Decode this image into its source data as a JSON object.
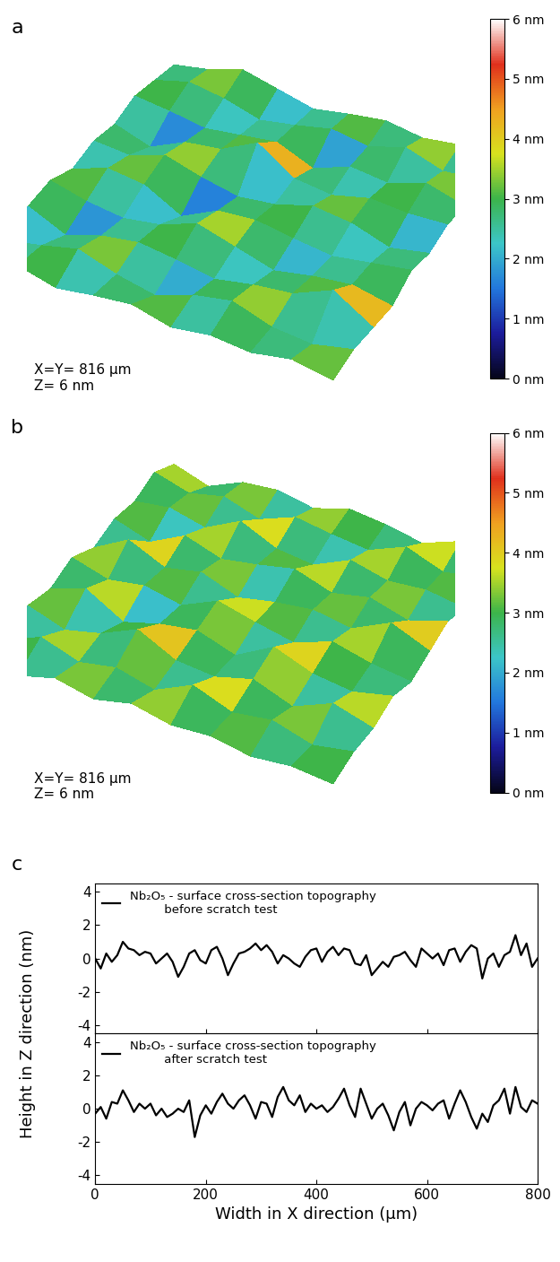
{
  "chart_data": [
    {
      "type": "surface",
      "panel_label": "a",
      "annotation": "X=Y= 816 µm\nZ= 6 nm",
      "xlim": [
        0,
        816
      ],
      "ylim": [
        0,
        816
      ],
      "zlim": [
        0,
        6
      ],
      "tick_labels": false,
      "cells": [
        [
          2.6,
          3.0,
          2.4,
          2.8,
          3.1,
          2.5,
          2.9,
          2.7,
          3.2,
          2.8
        ],
        [
          2.2,
          2.7,
          3.3,
          2.5,
          2.0,
          2.9,
          3.4,
          2.6,
          2.4,
          3.0
        ],
        [
          2.9,
          1.8,
          2.6,
          3.0,
          2.7,
          2.3,
          2.8,
          3.1,
          4.2,
          2.7
        ],
        [
          3.1,
          2.5,
          2.2,
          2.6,
          3.5,
          2.8,
          2.1,
          2.6,
          2.9,
          2.4
        ],
        [
          2.4,
          3.2,
          2.9,
          1.6,
          2.8,
          3.0,
          2.6,
          2.3,
          2.7,
          3.1
        ],
        [
          2.8,
          2.6,
          3.4,
          2.7,
          2.2,
          2.5,
          3.2,
          2.9,
          2.1,
          2.6
        ],
        [
          2.5,
          1.7,
          2.8,
          3.1,
          4.3,
          2.7,
          2.4,
          3.0,
          2.8,
          2.9
        ],
        [
          3.0,
          2.7,
          2.3,
          2.6,
          2.9,
          1.9,
          2.8,
          2.5,
          3.3,
          2.6
        ],
        [
          2.7,
          3.3,
          2.9,
          2.2,
          2.6,
          3.1,
          2.7,
          3.4,
          2.6,
          2.8
        ],
        [
          2.4,
          2.8,
          3.5,
          2.9,
          2.3,
          2.7,
          3.0,
          2.6,
          2.9,
          3.2
        ]
      ],
      "colorbar": {
        "range": [
          0,
          6
        ],
        "ticks": [
          {
            "value": 0,
            "label": "0 nm"
          },
          {
            "value": 1,
            "label": "1 nm"
          },
          {
            "value": 2,
            "label": "2 nm"
          },
          {
            "value": 3,
            "label": "3 nm"
          },
          {
            "value": 4,
            "label": "4 nm"
          },
          {
            "value": 5,
            "label": "5 nm"
          },
          {
            "value": 6,
            "label": "6 nm"
          }
        ]
      }
    },
    {
      "type": "surface",
      "panel_label": "b",
      "annotation": "X=Y= 816 µm\nZ= 6 nm",
      "xlim": [
        0,
        816
      ],
      "ylim": [
        0,
        816
      ],
      "zlim": [
        0,
        6
      ],
      "tick_labels": false,
      "cells": [
        [
          3.0,
          2.6,
          3.3,
          2.8,
          3.4,
          2.9,
          3.1,
          2.7,
          3.0,
          2.8
        ],
        [
          2.5,
          3.5,
          2.7,
          3.2,
          2.6,
          3.8,
          2.9,
          3.3,
          2.6,
          3.1
        ],
        [
          3.2,
          2.4,
          3.0,
          4.1,
          2.9,
          2.7,
          3.4,
          2.5,
          3.6,
          2.9
        ],
        [
          2.8,
          3.6,
          2.2,
          2.9,
          3.3,
          2.5,
          3.9,
          3.0,
          2.7,
          3.3
        ],
        [
          3.4,
          2.7,
          3.1,
          2.6,
          3.7,
          3.1,
          2.6,
          3.5,
          2.9,
          2.6
        ],
        [
          2.6,
          3.9,
          2.8,
          3.3,
          2.4,
          2.9,
          3.2,
          2.8,
          4.0,
          3.0
        ],
        [
          3.1,
          2.3,
          3.5,
          2.7,
          3.1,
          3.6,
          2.8,
          3.3,
          2.6,
          3.4
        ],
        [
          2.9,
          3.2,
          2.6,
          3.8,
          2.7,
          2.4,
          3.5,
          2.9,
          3.1,
          2.7
        ],
        [
          3.5,
          2.8,
          3.3,
          2.5,
          3.4,
          3.0,
          2.7,
          3.7,
          2.8,
          3.2
        ],
        [
          2.7,
          1.9,
          2.9,
          3.1,
          2.6,
          3.3,
          3.0,
          2.5,
          3.4,
          2.9
        ]
      ],
      "colorbar": {
        "range": [
          0,
          6
        ],
        "ticks": [
          {
            "value": 0,
            "label": "0 nm"
          },
          {
            "value": 1,
            "label": "1 nm"
          },
          {
            "value": 2,
            "label": "2 nm"
          },
          {
            "value": 3,
            "label": "3 nm"
          },
          {
            "value": 4,
            "label": "4 nm"
          },
          {
            "value": 5,
            "label": "5 nm"
          },
          {
            "value": 6,
            "label": "6 nm"
          }
        ]
      }
    },
    {
      "type": "line",
      "panel_label": "c",
      "xlabel": "Width in X direction (µm)",
      "ylabel": "Height in Z direction (nm)",
      "xlim": [
        0,
        800
      ],
      "xticks": [
        0,
        200,
        400,
        600,
        800
      ],
      "ylim": [
        -4.5,
        4.5
      ],
      "yticks": [
        -4,
        -2,
        0,
        2,
        4
      ],
      "legend": "upper left",
      "x": [
        0,
        10,
        20,
        30,
        40,
        50,
        60,
        70,
        80,
        90,
        100,
        110,
        120,
        130,
        140,
        150,
        160,
        170,
        180,
        190,
        200,
        210,
        220,
        230,
        240,
        250,
        260,
        270,
        280,
        290,
        300,
        310,
        320,
        330,
        340,
        350,
        360,
        370,
        380,
        390,
        400,
        410,
        420,
        430,
        440,
        450,
        460,
        470,
        480,
        490,
        500,
        510,
        520,
        530,
        540,
        550,
        560,
        570,
        580,
        590,
        600,
        610,
        620,
        630,
        640,
        650,
        660,
        670,
        680,
        690,
        700,
        710,
        720,
        730,
        740,
        750,
        760,
        770,
        780,
        790,
        800
      ],
      "series": [
        {
          "name": "Nb₂O₅ - surface cross-section topography\n         before scratch test",
          "color": "#000000",
          "values": [
            0.0,
            -0.6,
            0.3,
            -0.2,
            0.2,
            1.0,
            0.6,
            0.5,
            0.2,
            0.4,
            0.3,
            -0.3,
            0.0,
            0.3,
            -0.2,
            -1.1,
            -0.5,
            0.3,
            0.5,
            -0.1,
            -0.3,
            0.5,
            0.7,
            0.0,
            -1.0,
            -0.3,
            0.3,
            0.4,
            0.6,
            0.9,
            0.5,
            0.8,
            0.4,
            -0.3,
            0.2,
            0.0,
            -0.3,
            -0.5,
            0.1,
            0.5,
            0.6,
            -0.2,
            0.4,
            0.7,
            0.2,
            0.6,
            0.5,
            -0.3,
            -0.4,
            0.2,
            -1.0,
            -0.6,
            -0.2,
            -0.5,
            0.1,
            0.2,
            0.4,
            -0.1,
            -0.5,
            0.6,
            0.3,
            0.0,
            0.3,
            -0.4,
            0.5,
            0.6,
            -0.2,
            0.4,
            0.8,
            0.6,
            -1.2,
            0.0,
            0.3,
            -0.5,
            0.2,
            0.4,
            1.4,
            0.2,
            0.9,
            -0.5,
            0.0
          ]
        },
        {
          "name": "Nb₂O₅ - surface cross-section topography\n         after scratch test",
          "color": "#000000",
          "values": [
            -0.3,
            0.1,
            -0.6,
            0.4,
            0.3,
            1.1,
            0.5,
            -0.2,
            0.3,
            0.0,
            0.3,
            -0.4,
            0.0,
            -0.5,
            -0.3,
            0.0,
            -0.2,
            0.5,
            -1.7,
            -0.4,
            0.2,
            -0.3,
            0.4,
            0.9,
            0.3,
            0.0,
            0.5,
            0.8,
            0.2,
            -0.6,
            0.4,
            0.3,
            -0.5,
            0.7,
            1.3,
            0.5,
            0.2,
            0.8,
            -0.2,
            0.3,
            0.0,
            0.2,
            -0.2,
            0.1,
            0.6,
            1.2,
            0.2,
            -0.5,
            1.2,
            0.3,
            -0.6,
            0.0,
            0.3,
            -0.4,
            -1.3,
            -0.2,
            0.4,
            -1.0,
            0.0,
            0.4,
            0.2,
            -0.1,
            0.3,
            0.5,
            -0.6,
            0.3,
            1.1,
            0.4,
            -0.5,
            -1.2,
            -0.3,
            -0.8,
            0.2,
            0.5,
            1.2,
            -0.3,
            1.3,
            0.1,
            -0.2,
            0.5,
            0.3
          ]
        }
      ]
    }
  ]
}
